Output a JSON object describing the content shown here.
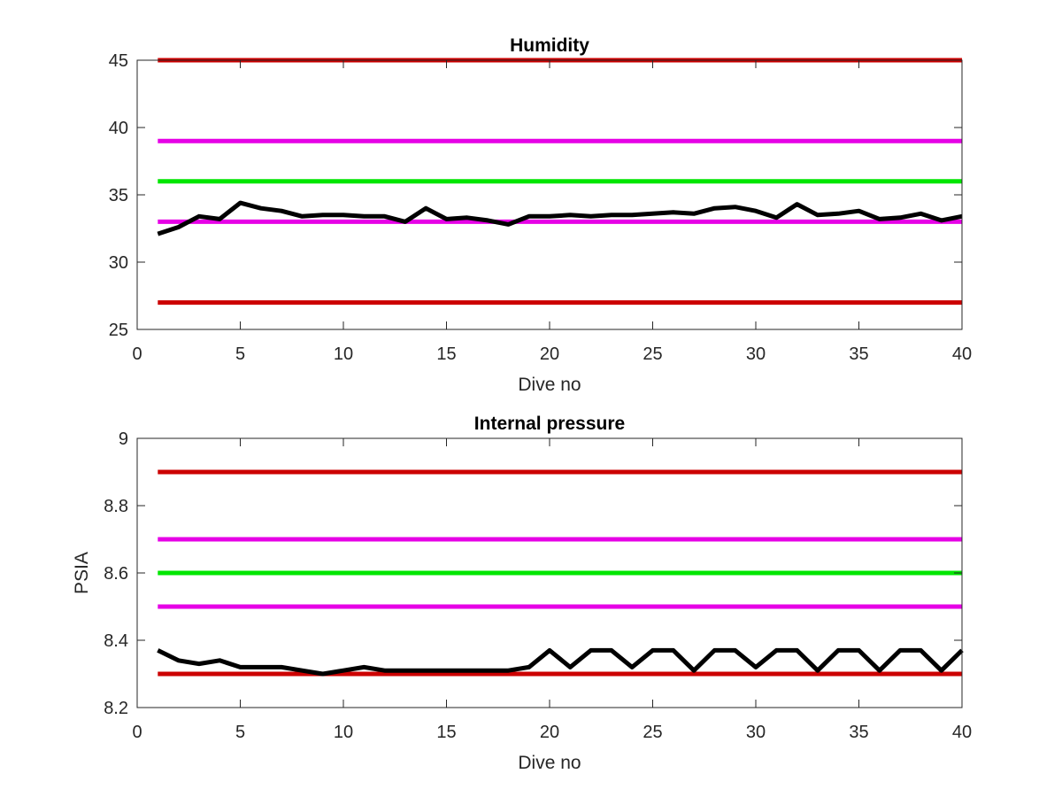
{
  "chart_data": [
    {
      "type": "line",
      "title": "Humidity",
      "xlabel": "Dive no",
      "ylabel": "",
      "xlim": [
        0,
        40
      ],
      "ylim": [
        25,
        45
      ],
      "xticks": [
        "0",
        "5",
        "10",
        "15",
        "20",
        "25",
        "30",
        "35",
        "40"
      ],
      "yticks": [
        "25",
        "30",
        "35",
        "40",
        "45"
      ],
      "grid": false,
      "legend": "none",
      "limit_lines": [
        {
          "value": 45,
          "color": "#cc0000"
        },
        {
          "value": 39,
          "color": "#e600e6"
        },
        {
          "value": 36,
          "color": "#00e600"
        },
        {
          "value": 33,
          "color": "#e600e6"
        },
        {
          "value": 27,
          "color": "#cc0000"
        }
      ],
      "series": [
        {
          "color": "#000000",
          "x": [
            1,
            2,
            3,
            4,
            5,
            6,
            7,
            8,
            9,
            10,
            11,
            12,
            13,
            14,
            15,
            16,
            17,
            18,
            19,
            20,
            21,
            22,
            23,
            24,
            25,
            26,
            27,
            28,
            29,
            30,
            31,
            32,
            33,
            34,
            35,
            36,
            37,
            38,
            39,
            40
          ],
          "y": [
            32.1,
            32.6,
            33.4,
            33.2,
            34.4,
            34.0,
            33.8,
            33.4,
            33.5,
            33.5,
            33.4,
            33.4,
            33.0,
            34.0,
            33.2,
            33.3,
            33.1,
            32.8,
            33.4,
            33.4,
            33.5,
            33.4,
            33.5,
            33.5,
            33.6,
            33.7,
            33.6,
            34.0,
            34.1,
            33.8,
            33.3,
            34.3,
            33.5,
            33.6,
            33.8,
            33.2,
            33.3,
            33.6,
            33.1,
            33.4
          ]
        }
      ]
    },
    {
      "type": "line",
      "title": "Internal pressure",
      "xlabel": "Dive no",
      "ylabel": "PSIA",
      "xlim": [
        0,
        40
      ],
      "ylim": [
        8.2,
        9
      ],
      "xticks": [
        "0",
        "5",
        "10",
        "15",
        "20",
        "25",
        "30",
        "35",
        "40"
      ],
      "yticks": [
        "8.2",
        "8.4",
        "8.6",
        "8.8",
        "9"
      ],
      "grid": false,
      "legend": "none",
      "limit_lines": [
        {
          "value": 8.9,
          "color": "#cc0000"
        },
        {
          "value": 8.7,
          "color": "#e600e6"
        },
        {
          "value": 8.6,
          "color": "#00e600"
        },
        {
          "value": 8.5,
          "color": "#e600e6"
        },
        {
          "value": 8.3,
          "color": "#cc0000"
        }
      ],
      "series": [
        {
          "color": "#000000",
          "x": [
            1,
            2,
            3,
            4,
            5,
            6,
            7,
            8,
            9,
            10,
            11,
            12,
            13,
            14,
            15,
            16,
            17,
            18,
            19,
            20,
            21,
            22,
            23,
            24,
            25,
            26,
            27,
            28,
            29,
            30,
            31,
            32,
            33,
            34,
            35,
            36,
            37,
            38,
            39,
            40
          ],
          "y": [
            8.37,
            8.34,
            8.33,
            8.34,
            8.32,
            8.32,
            8.32,
            8.31,
            8.3,
            8.31,
            8.32,
            8.31,
            8.31,
            8.31,
            8.31,
            8.31,
            8.31,
            8.31,
            8.32,
            8.37,
            8.32,
            8.37,
            8.37,
            8.32,
            8.37,
            8.37,
            8.31,
            8.37,
            8.37,
            8.32,
            8.37,
            8.37,
            8.31,
            8.37,
            8.37,
            8.31,
            8.37,
            8.37,
            8.31,
            8.37
          ]
        }
      ]
    }
  ]
}
